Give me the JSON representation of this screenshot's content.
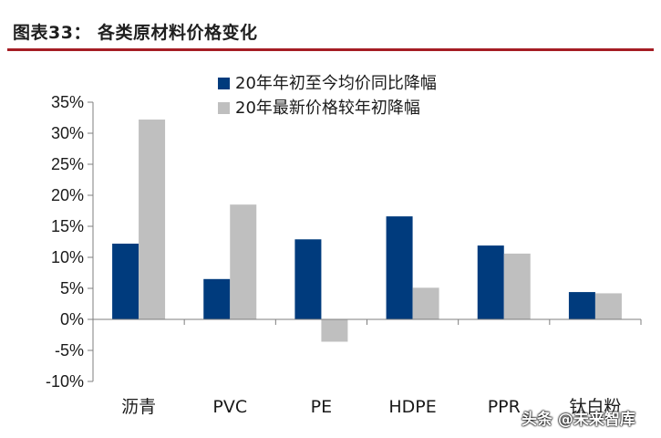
{
  "header": {
    "title": "图表33：  各类原材料价格变化"
  },
  "watermark": "头条 @未来智库",
  "chart_data": {
    "type": "bar",
    "categories": [
      "沥青",
      "PVC",
      "PE",
      "HDPE",
      "PPR",
      "钛白粉"
    ],
    "series": [
      {
        "name": "20年年初至今均价同比降幅",
        "color": "#003b7d",
        "values": [
          12.2,
          6.5,
          12.9,
          16.6,
          11.9,
          4.4
        ]
      },
      {
        "name": "20年最新价格较年初降幅",
        "color": "#bfbfbf",
        "values": [
          32.2,
          18.5,
          -3.6,
          5.1,
          10.6,
          4.2
        ]
      }
    ],
    "ylim": [
      -10,
      35
    ],
    "yticks": [
      -10,
      -5,
      0,
      5,
      10,
      15,
      20,
      25,
      30,
      35
    ],
    "ytick_labels": [
      "-10%",
      "-5%",
      "0%",
      "5%",
      "10%",
      "15%",
      "20%",
      "25%",
      "30%",
      "35%"
    ],
    "legend_position": "top-center",
    "grid": false,
    "title": "",
    "xlabel": "",
    "ylabel": ""
  }
}
